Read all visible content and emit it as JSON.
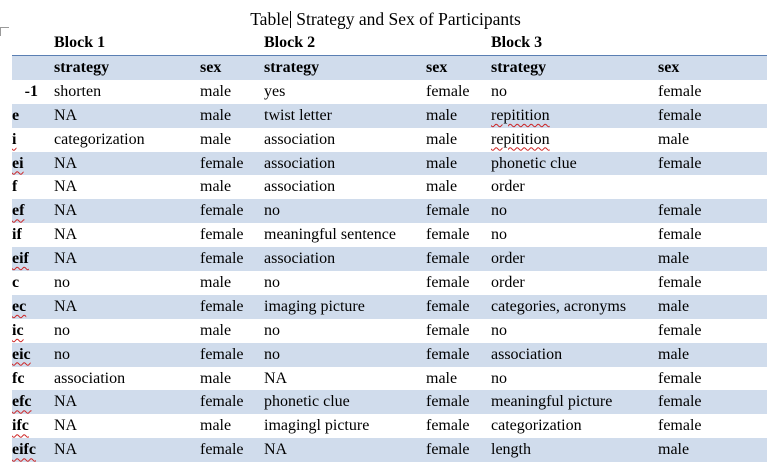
{
  "title": {
    "before_cursor": "Table",
    "after_cursor": " Strategy and Sex of Participants"
  },
  "block_headers": [
    "Block 1",
    "Block 2",
    "Block 3"
  ],
  "column_headers": [
    "strategy",
    "sex",
    "strategy",
    "sex",
    "strategy",
    "sex"
  ],
  "rows": [
    {
      "id": "-1",
      "cells": [
        "shorten",
        "male",
        "yes",
        "female",
        "no",
        "female"
      ]
    },
    {
      "id": "e",
      "cells": [
        "NA",
        "male",
        "twist letter",
        "male",
        "repitition",
        "female"
      ]
    },
    {
      "id": "i",
      "cells": [
        "categorization",
        "male",
        "association",
        "male",
        "repitition",
        "male"
      ]
    },
    {
      "id": "ei",
      "cells": [
        "NA",
        "female",
        "association",
        "male",
        "phonetic clue",
        "female"
      ]
    },
    {
      "id": "f",
      "cells": [
        "NA",
        "male",
        "association",
        "male",
        "order",
        ""
      ]
    },
    {
      "id": "ef",
      "cells": [
        "NA",
        "female",
        "no",
        "female",
        "no",
        "female"
      ]
    },
    {
      "id": "if",
      "cells": [
        "NA",
        "female",
        "meaningful sentence",
        "female",
        "no",
        "female"
      ]
    },
    {
      "id": "eif",
      "cells": [
        "NA",
        "female",
        "association",
        "female",
        "order",
        "male"
      ]
    },
    {
      "id": "c",
      "cells": [
        "no",
        "male",
        "no",
        "female",
        "order",
        "female"
      ]
    },
    {
      "id": "ec",
      "cells": [
        "NA",
        "female",
        "imaging picture",
        "female",
        "categories, acronyms",
        "male"
      ]
    },
    {
      "id": "ic",
      "cells": [
        "no",
        "male",
        "no",
        "female",
        "no",
        "female"
      ]
    },
    {
      "id": "eic",
      "cells": [
        "no",
        "female",
        "no",
        "female",
        "association",
        "male"
      ]
    },
    {
      "id": "fc",
      "cells": [
        "association",
        "male",
        "NA",
        "male",
        "no",
        "female"
      ]
    },
    {
      "id": "efc",
      "cells": [
        "NA",
        "female",
        "phonetic clue",
        "female",
        "meaningful picture",
        "female"
      ]
    },
    {
      "id": "ifc",
      "cells": [
        "NA",
        "male",
        "imagingl picture",
        "female",
        "categorization",
        "female"
      ]
    },
    {
      "id": "eifc",
      "cells": [
        "NA",
        "female",
        "NA",
        "female",
        "length",
        "male"
      ]
    }
  ],
  "spellcheck_flagged": [
    "i",
    "ei",
    "ef",
    "eif",
    "ec",
    "ic",
    "eic",
    "efc",
    "ifc",
    "eifc",
    "repitition",
    "imagingl"
  ],
  "colors": {
    "row_shade": "#d0dcec",
    "header_rule": "#5a7fb3",
    "spellcheck": "#cc2222"
  }
}
